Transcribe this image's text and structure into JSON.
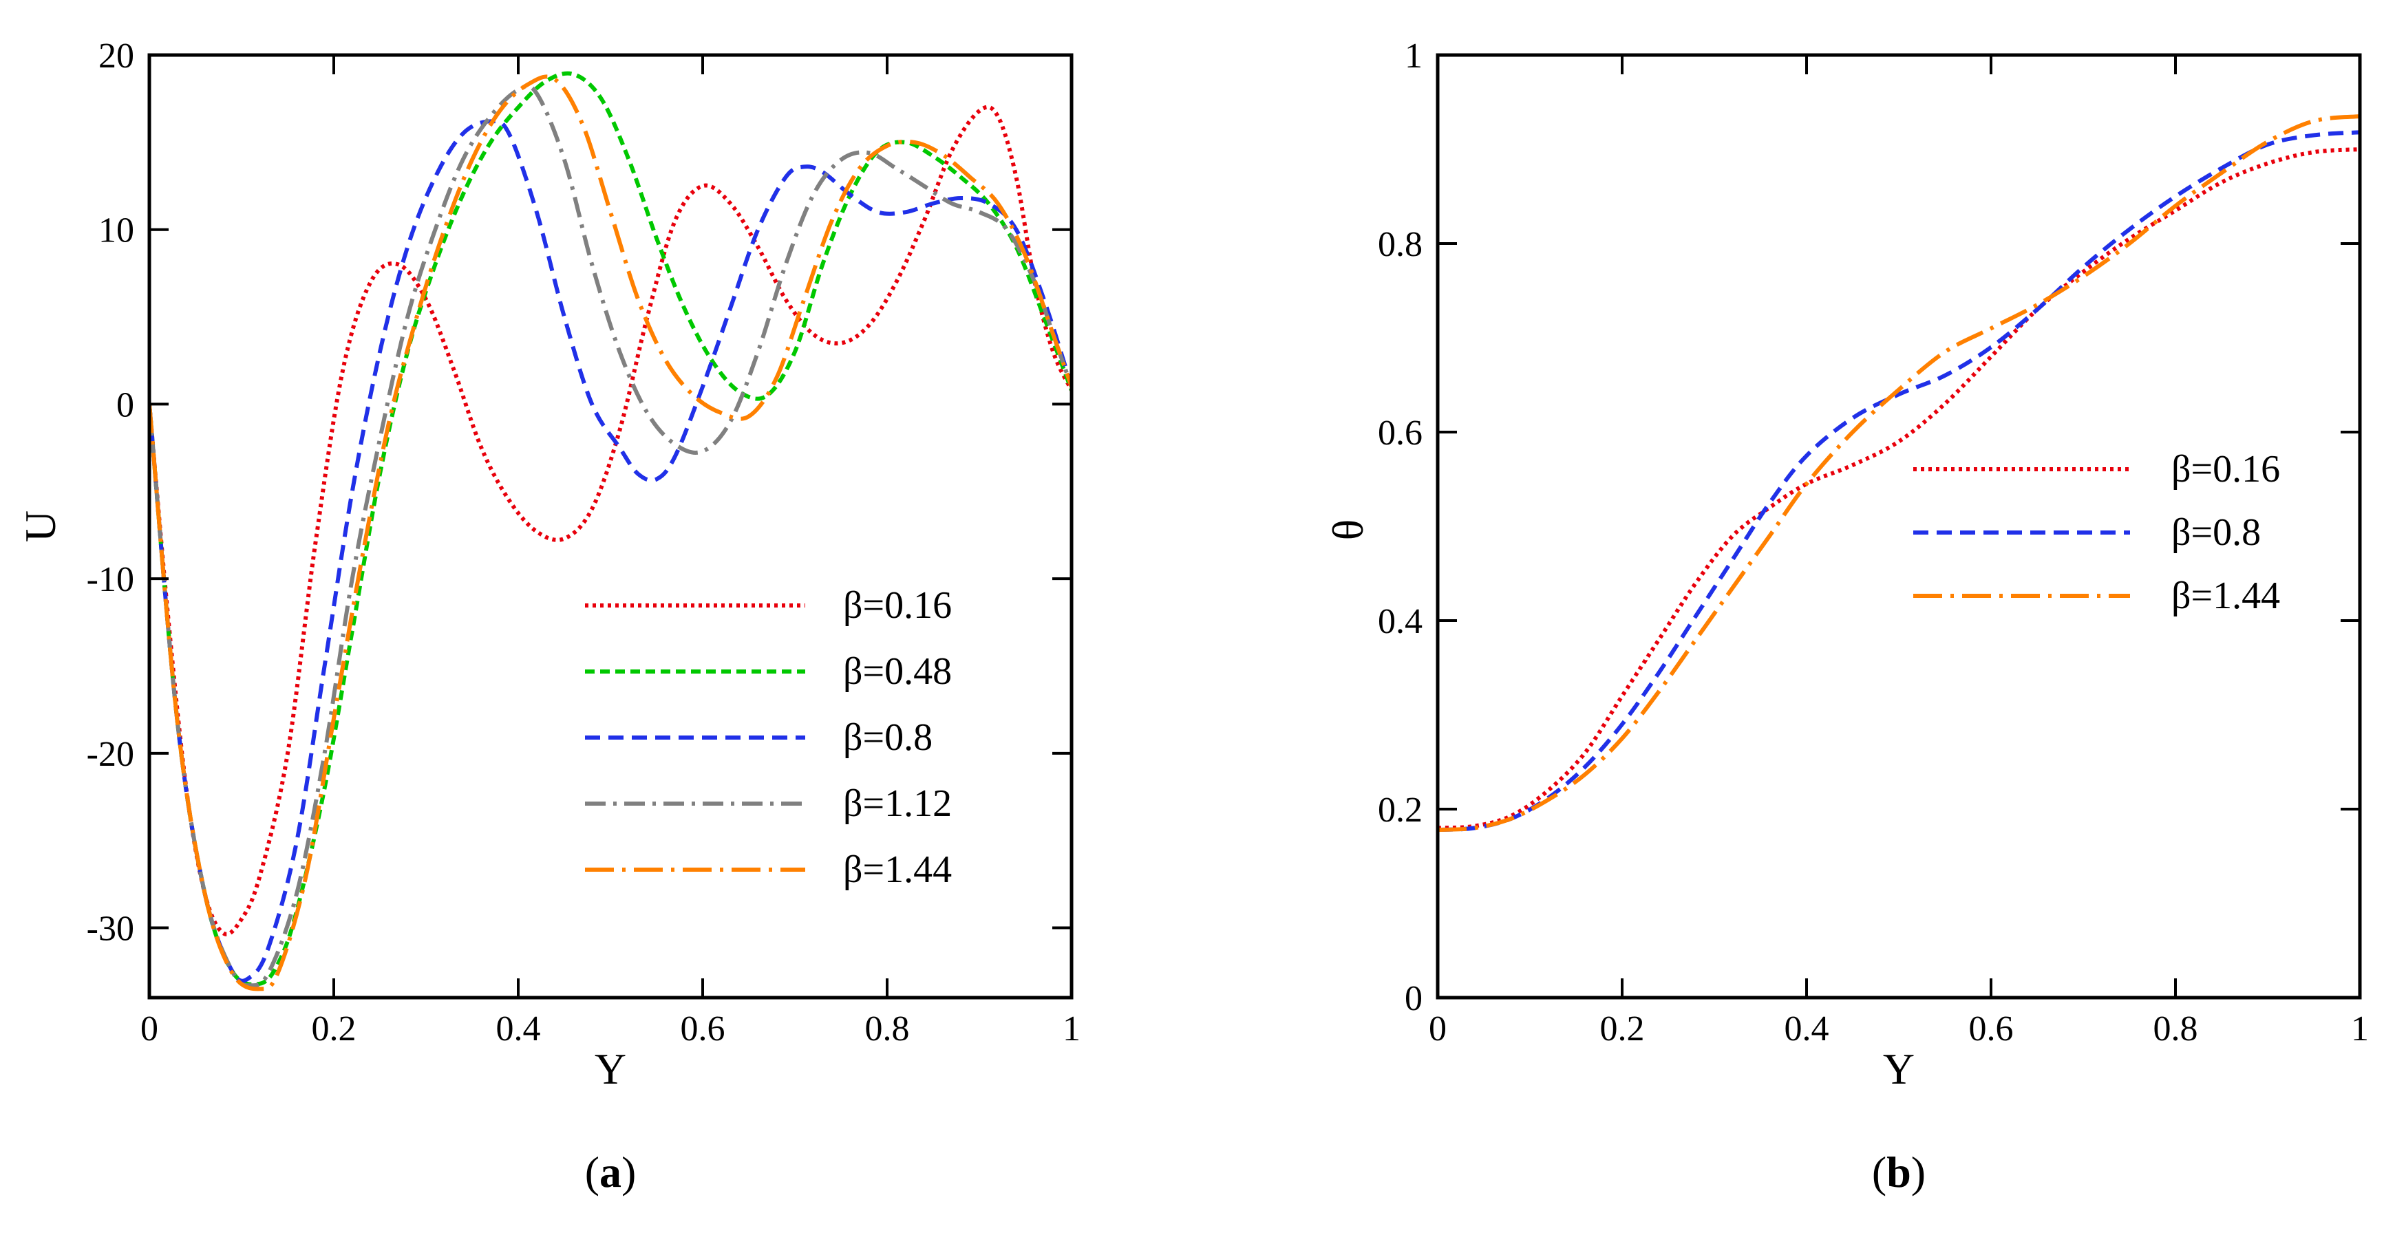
{
  "chart_data": [
    {
      "type": "line",
      "panel_label": "a",
      "title": "",
      "xlabel": "Y",
      "ylabel": "U",
      "xlim": [
        0,
        1
      ],
      "ylim": [
        -34,
        20
      ],
      "xticks": [
        0,
        0.2,
        0.4,
        0.6,
        0.8,
        1
      ],
      "xtick_labels": [
        "0",
        "0.2",
        "0.4",
        "0.6",
        "0.8",
        "1"
      ],
      "yticks": [
        -30,
        -20,
        -10,
        0,
        10,
        20
      ],
      "ytick_labels": [
        "-30",
        "-20",
        "-10",
        "0",
        "10",
        "20"
      ],
      "legend_position": "lower-right",
      "series": [
        {
          "name": "β=0.16",
          "color": "#e8000b",
          "dash": "dotted",
          "x": [
            0,
            0.02,
            0.04,
            0.06,
            0.08,
            0.1,
            0.12,
            0.15,
            0.18,
            0.21,
            0.24,
            0.27,
            0.3,
            0.33,
            0.36,
            0.39,
            0.42,
            0.45,
            0.48,
            0.51,
            0.54,
            0.57,
            0.6,
            0.63,
            0.66,
            0.69,
            0.72,
            0.75,
            0.78,
            0.81,
            0.84,
            0.87,
            0.9,
            0.92,
            0.94,
            0.96,
            0.98,
            1
          ],
          "y": [
            0,
            -12,
            -22,
            -28,
            -30.3,
            -29.5,
            -27,
            -20,
            -8,
            2,
            7,
            8,
            6,
            2,
            -2.5,
            -5.5,
            -7.3,
            -7.7,
            -6,
            -1.5,
            5,
            10.5,
            12.5,
            11.5,
            9,
            6,
            4,
            3.5,
            4.5,
            7,
            10.5,
            14.5,
            16.8,
            16.5,
            13,
            7,
            3,
            0.8
          ]
        },
        {
          "name": "β=0.48",
          "color": "#00c800",
          "dash": "dashed-fine",
          "x": [
            0,
            0.03,
            0.06,
            0.09,
            0.12,
            0.14,
            0.16,
            0.19,
            0.22,
            0.25,
            0.28,
            0.31,
            0.34,
            0.37,
            0.4,
            0.43,
            0.46,
            0.49,
            0.52,
            0.55,
            0.58,
            0.61,
            0.64,
            0.67,
            0.7,
            0.73,
            0.76,
            0.79,
            0.82,
            0.85,
            0.88,
            0.91,
            0.94,
            0.97,
            1
          ],
          "y": [
            0,
            -18,
            -28,
            -32.5,
            -33.2,
            -32,
            -29,
            -22,
            -13,
            -4,
            3,
            8,
            12,
            15,
            17,
            18.5,
            18.9,
            17.5,
            14,
            9.5,
            5.5,
            2.5,
            0.7,
            0.5,
            3,
            8,
            12,
            14.5,
            15,
            14.2,
            13,
            11.5,
            9,
            5,
            0.8
          ]
        },
        {
          "name": "β=0.8",
          "color": "#2030e8",
          "dash": "dashed",
          "x": [
            0,
            0.03,
            0.06,
            0.09,
            0.11,
            0.13,
            0.16,
            0.19,
            0.22,
            0.25,
            0.28,
            0.31,
            0.34,
            0.37,
            0.39,
            0.42,
            0.45,
            0.48,
            0.51,
            0.53,
            0.55,
            0.57,
            0.6,
            0.63,
            0.66,
            0.69,
            0.71,
            0.73,
            0.76,
            0.79,
            0.82,
            0.85,
            0.88,
            0.91,
            0.94,
            0.97,
            1
          ],
          "y": [
            0,
            -18,
            -28,
            -32.5,
            -32.8,
            -31,
            -25,
            -15,
            -5,
            3,
            9,
            13,
            15.5,
            16.2,
            15.5,
            11,
            5,
            0,
            -2.5,
            -4,
            -4.3,
            -3,
            1,
            5.5,
            10,
            13,
            13.6,
            13.3,
            12,
            11,
            11,
            11.5,
            11.8,
            11.5,
            10,
            6,
            1
          ]
        },
        {
          "name": "β=1.12",
          "color": "#808080",
          "dash": "dashdot",
          "x": [
            0,
            0.03,
            0.06,
            0.09,
            0.11,
            0.13,
            0.16,
            0.19,
            0.22,
            0.25,
            0.28,
            0.31,
            0.34,
            0.37,
            0.4,
            0.42,
            0.45,
            0.48,
            0.51,
            0.54,
            0.57,
            0.6,
            0.63,
            0.66,
            0.69,
            0.72,
            0.75,
            0.78,
            0.81,
            0.84,
            0.87,
            0.9,
            0.93,
            0.96,
            0.98,
            1
          ],
          "y": [
            0,
            -18,
            -28,
            -32.5,
            -33.3,
            -32.5,
            -28,
            -20,
            -10,
            -2,
            5,
            10,
            14,
            16.5,
            18,
            17.8,
            14,
            8,
            3,
            -0.5,
            -2.3,
            -2.7,
            -1,
            3,
            8,
            12,
            14,
            14.4,
            13.5,
            12.5,
            11.5,
            11,
            10,
            7,
            4,
            1
          ]
        },
        {
          "name": "β=1.44",
          "color": "#ff8000",
          "dash": "longdashdot",
          "x": [
            0,
            0.03,
            0.06,
            0.09,
            0.12,
            0.14,
            0.17,
            0.2,
            0.23,
            0.26,
            0.29,
            0.32,
            0.35,
            0.38,
            0.41,
            0.44,
            0.47,
            0.5,
            0.53,
            0.56,
            0.59,
            0.62,
            0.65,
            0.68,
            0.71,
            0.74,
            0.77,
            0.8,
            0.83,
            0.86,
            0.89,
            0.92,
            0.95,
            0.98,
            1
          ],
          "y": [
            0,
            -18,
            -28,
            -32.6,
            -33.5,
            -32.5,
            -27,
            -18,
            -9,
            -1,
            5,
            10,
            14,
            16.8,
            18.3,
            18.6,
            16,
            11,
            6,
            2.5,
            0.5,
            -0.5,
            -0.7,
            1.5,
            6,
            10.5,
            13.5,
            14.8,
            15,
            14.3,
            13,
            11.5,
            8.5,
            4,
            1
          ]
        }
      ]
    },
    {
      "type": "line",
      "panel_label": "b",
      "title": "",
      "xlabel": "Y",
      "ylabel": "θ",
      "xlim": [
        0,
        1
      ],
      "ylim": [
        0,
        1
      ],
      "xticks": [
        0,
        0.2,
        0.4,
        0.6,
        0.8,
        1
      ],
      "xtick_labels": [
        "0",
        "0.2",
        "0.4",
        "0.6",
        "0.8",
        "1"
      ],
      "yticks": [
        0,
        0.2,
        0.4,
        0.6,
        0.8,
        1
      ],
      "ytick_labels": [
        "0",
        "0.2",
        "0.4",
        "0.6",
        "0.8",
        "1"
      ],
      "legend_position": "center-right",
      "series": [
        {
          "name": "β=0.16",
          "color": "#e8000b",
          "dash": "dotted",
          "x": [
            0,
            0.04,
            0.08,
            0.12,
            0.16,
            0.2,
            0.24,
            0.28,
            0.32,
            0.36,
            0.4,
            0.45,
            0.5,
            0.55,
            0.6,
            0.65,
            0.7,
            0.75,
            0.8,
            0.85,
            0.9,
            0.95,
            1
          ],
          "y": [
            0.18,
            0.182,
            0.193,
            0.22,
            0.26,
            0.32,
            0.38,
            0.44,
            0.49,
            0.52,
            0.545,
            0.565,
            0.59,
            0.63,
            0.68,
            0.73,
            0.77,
            0.805,
            0.835,
            0.865,
            0.885,
            0.897,
            0.9
          ]
        },
        {
          "name": "β=0.8",
          "color": "#2030e8",
          "dash": "dashed",
          "x": [
            0,
            0.04,
            0.08,
            0.12,
            0.16,
            0.2,
            0.24,
            0.28,
            0.32,
            0.36,
            0.4,
            0.45,
            0.5,
            0.55,
            0.6,
            0.65,
            0.7,
            0.75,
            0.8,
            0.85,
            0.9,
            0.95,
            1
          ],
          "y": [
            0.178,
            0.18,
            0.19,
            0.212,
            0.245,
            0.29,
            0.345,
            0.405,
            0.465,
            0.525,
            0.575,
            0.615,
            0.64,
            0.66,
            0.69,
            0.73,
            0.775,
            0.815,
            0.85,
            0.88,
            0.905,
            0.915,
            0.918
          ]
        },
        {
          "name": "β=1.44",
          "color": "#ff8000",
          "dash": "longdashdot",
          "x": [
            0,
            0.04,
            0.08,
            0.12,
            0.16,
            0.2,
            0.24,
            0.28,
            0.32,
            0.36,
            0.4,
            0.45,
            0.5,
            0.55,
            0.6,
            0.65,
            0.7,
            0.75,
            0.8,
            0.85,
            0.9,
            0.95,
            1
          ],
          "y": [
            0.178,
            0.18,
            0.19,
            0.21,
            0.237,
            0.275,
            0.325,
            0.38,
            0.435,
            0.49,
            0.545,
            0.6,
            0.645,
            0.685,
            0.71,
            0.735,
            0.765,
            0.8,
            0.84,
            0.875,
            0.908,
            0.93,
            0.935
          ]
        }
      ]
    }
  ]
}
